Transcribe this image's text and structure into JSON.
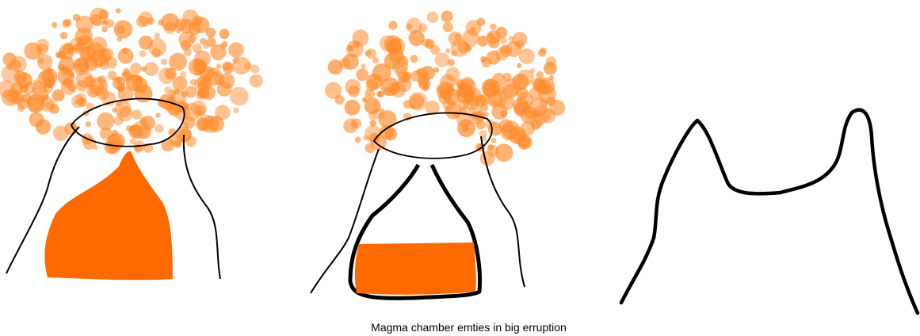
{
  "caption": "Magma chamber emties in big erruption",
  "colors": {
    "magma": "#ff6a00",
    "ash": "#ff8a2a",
    "outline": "#000000",
    "background": "#ffffff"
  },
  "panels": [
    {
      "name": "volcano-erupting",
      "chamber_fill": 1.0
    },
    {
      "name": "volcano-chamber-emptying",
      "chamber_fill": 0.45
    },
    {
      "name": "volcano-collapsed-caldera",
      "chamber_fill": 0.0
    }
  ]
}
